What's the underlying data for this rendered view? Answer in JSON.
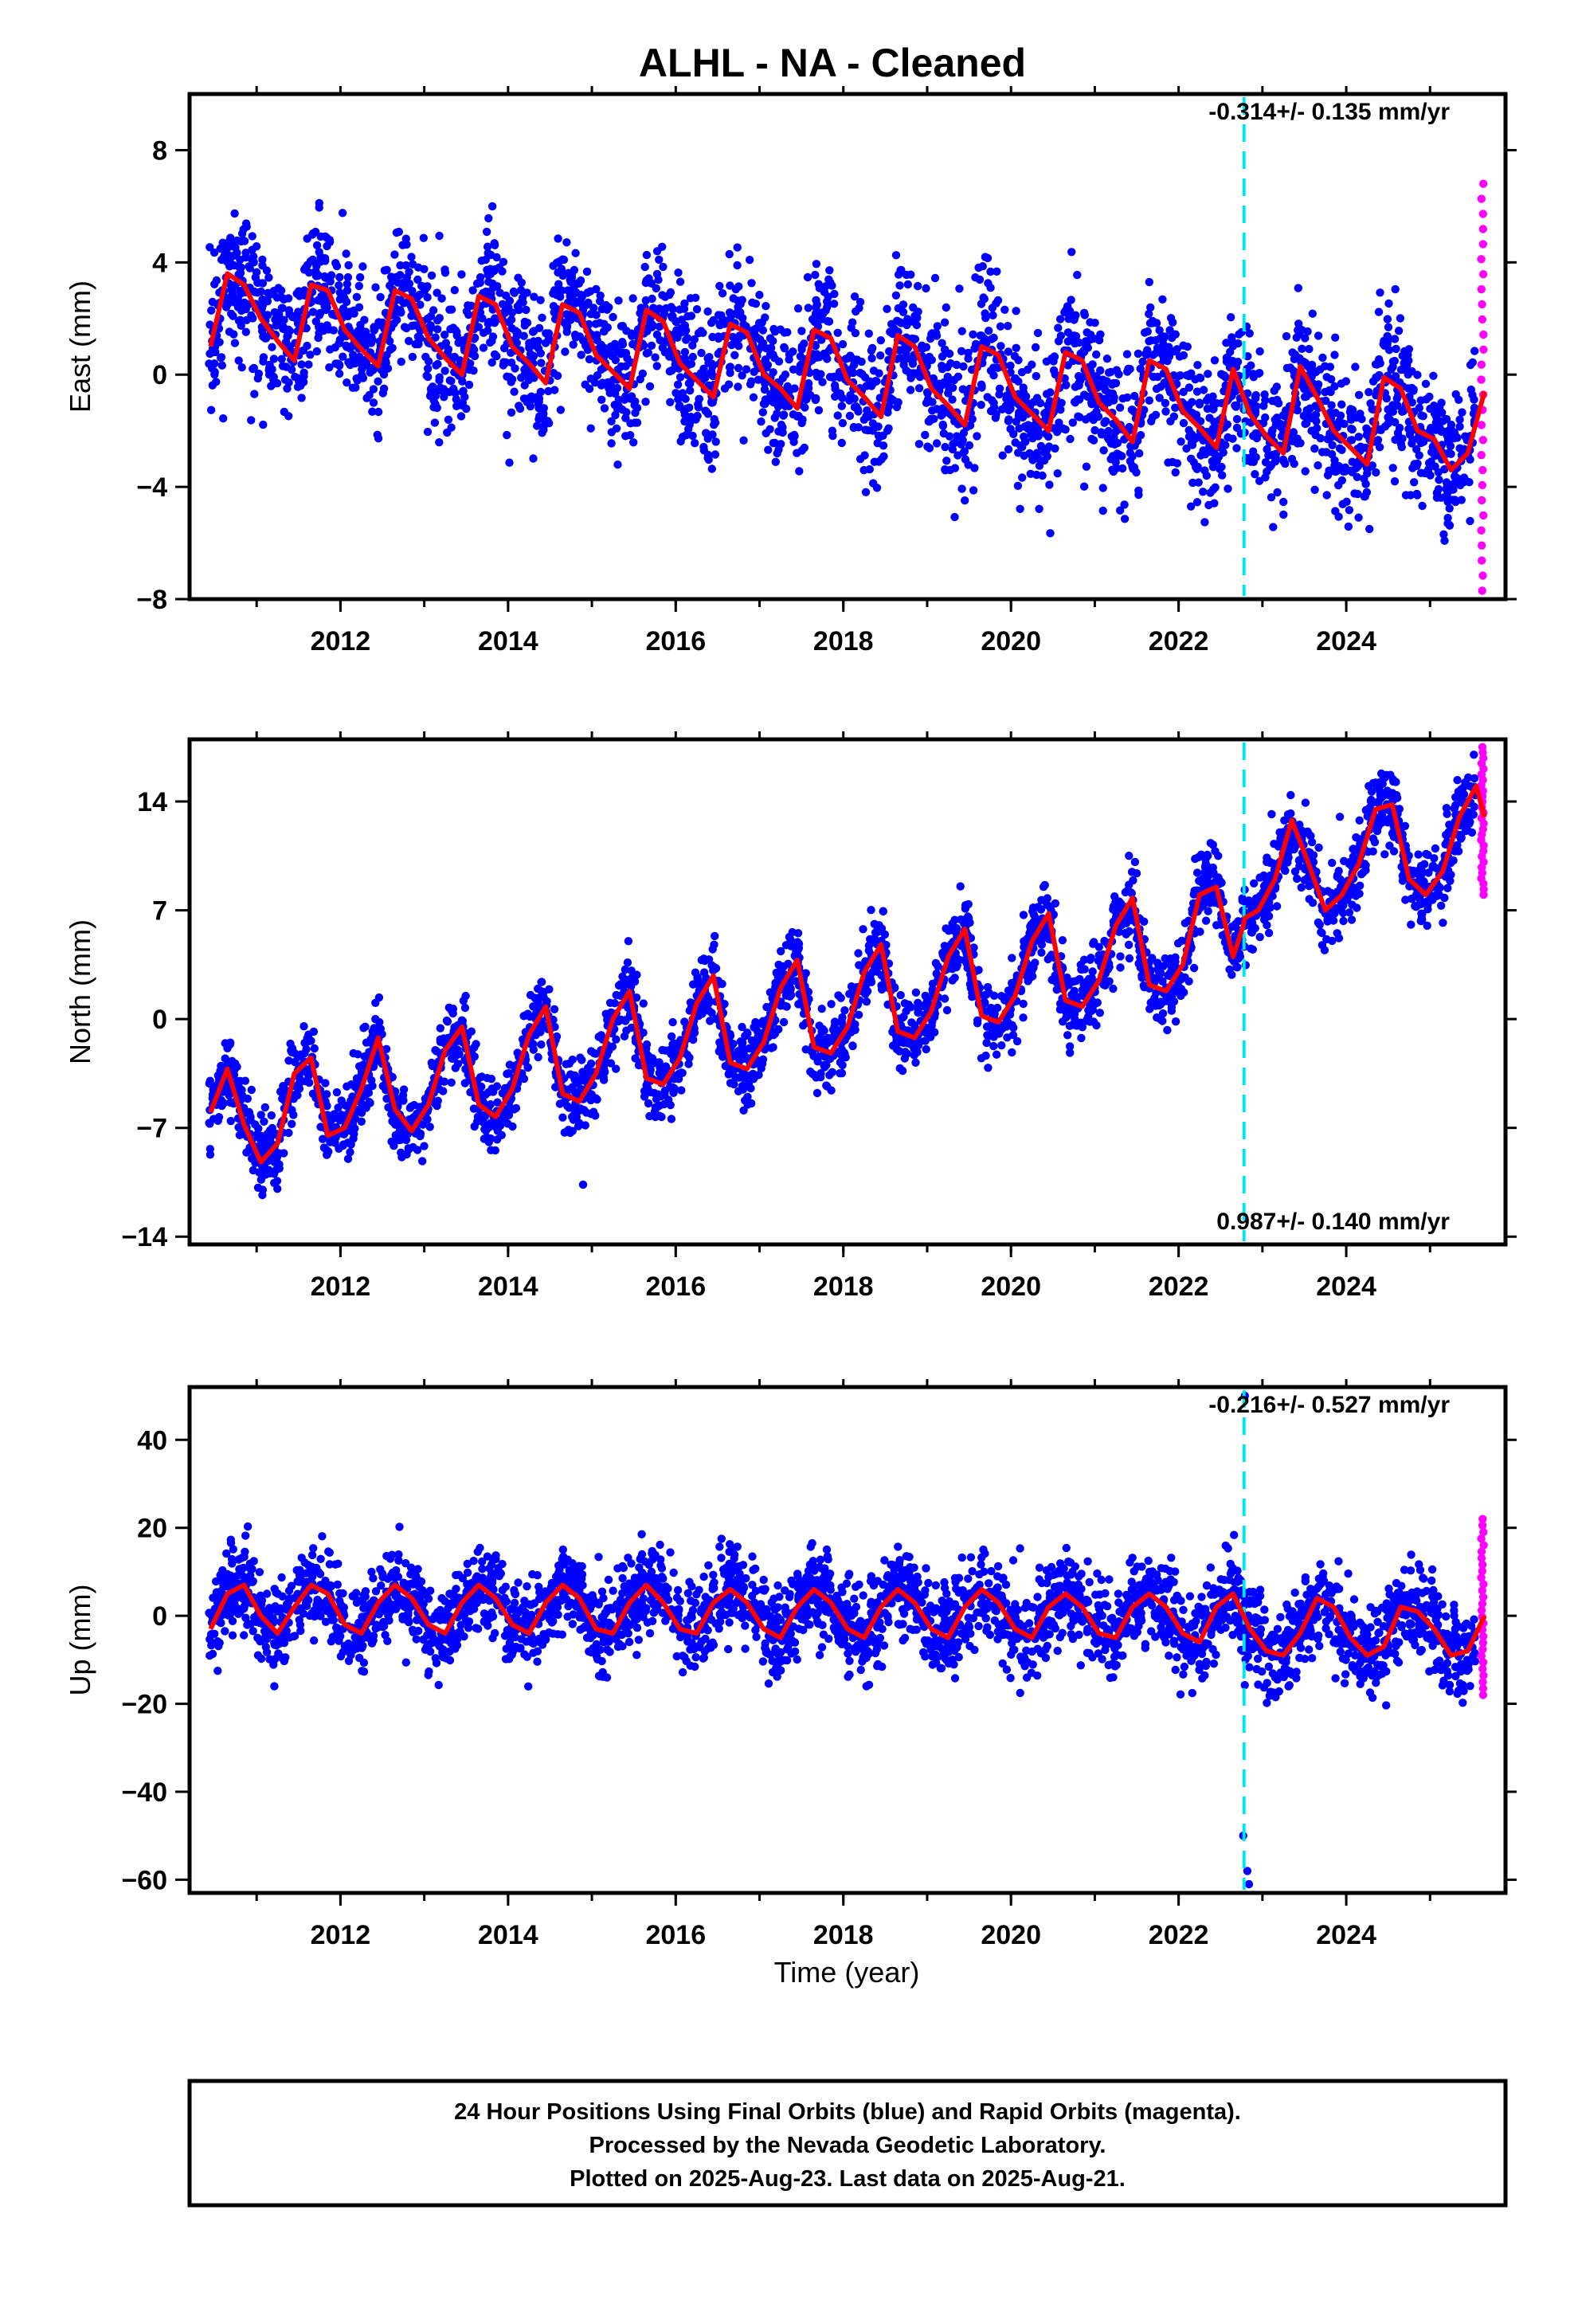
{
  "title": "ALHL  - NA - Cleaned",
  "xlabel": "Time (year)",
  "footer": {
    "line1": "24 Hour Positions Using Final Orbits (blue) and Rapid Orbits (magenta).",
    "line2": "Processed by the Nevada Geodetic Laboratory.",
    "line3": "Plotted on 2025-Aug-23. Last data on 2025-Aug-21."
  },
  "colors": {
    "final_orbits": "#0000ff",
    "rapid_orbits": "#ff00ff",
    "model_fit": "#ff0000",
    "equipment_change": "#00e5ee"
  },
  "chart_data": [
    {
      "type": "scatter",
      "component": "East",
      "ylabel": "East (mm)",
      "rate_label": "-0.314+/- 0.135 mm/yr",
      "xlim": [
        2010.2,
        2025.9
      ],
      "ylim": [
        -8,
        10
      ],
      "xticks": [
        2012,
        2014,
        2016,
        2018,
        2020,
        2022,
        2024
      ],
      "yticks": [
        -8,
        -4,
        0,
        4,
        8
      ],
      "data_start": 2010.43,
      "data_end": 2025.64,
      "offset_epoch": 2022.78,
      "series": [
        {
          "name": "Final Orbits",
          "color": "#0000ff",
          "scatter_sd_mm": 1.3
        },
        {
          "name": "Rapid Orbits",
          "color": "#ff00ff",
          "x_range": [
            2025.54,
            2025.64
          ],
          "y_range": [
            -7.7,
            6.8
          ]
        },
        {
          "name": "Model fit",
          "color": "#ff0000",
          "x": [
            2010.45,
            2010.65,
            2010.85,
            2011.05,
            2011.25,
            2011.45,
            2011.65,
            2011.85,
            2012.05,
            2012.25,
            2012.45,
            2012.65,
            2012.85,
            2013.05,
            2013.25,
            2013.45,
            2013.65,
            2013.85,
            2014.05,
            2014.25,
            2014.45,
            2014.65,
            2014.85,
            2015.05,
            2015.25,
            2015.45,
            2015.65,
            2015.85,
            2016.05,
            2016.25,
            2016.45,
            2016.65,
            2016.85,
            2017.05,
            2017.25,
            2017.45,
            2017.65,
            2017.85,
            2018.05,
            2018.25,
            2018.45,
            2018.65,
            2018.85,
            2019.05,
            2019.25,
            2019.45,
            2019.65,
            2019.85,
            2020.05,
            2020.25,
            2020.45,
            2020.65,
            2020.85,
            2021.05,
            2021.25,
            2021.45,
            2021.65,
            2021.85,
            2022.05,
            2022.25,
            2022.45,
            2022.65,
            2022.85,
            2023.05,
            2023.25,
            2023.45,
            2023.65,
            2023.85,
            2024.05,
            2024.25,
            2024.45,
            2024.65,
            2024.85,
            2025.05,
            2025.25,
            2025.45,
            2025.65
          ],
          "y": [
            1.0,
            3.6,
            3.2,
            2.0,
            1.2,
            0.5,
            3.2,
            3.0,
            1.6,
            0.9,
            0.3,
            3.0,
            2.7,
            1.3,
            0.6,
            0.0,
            2.8,
            2.5,
            1.0,
            0.4,
            -0.3,
            2.5,
            2.2,
            0.7,
            0.1,
            -0.5,
            2.3,
            1.9,
            0.4,
            -0.2,
            -0.8,
            1.8,
            1.5,
            0.0,
            -0.5,
            -1.2,
            1.6,
            1.3,
            -0.2,
            -0.8,
            -1.5,
            1.4,
            1.0,
            -0.5,
            -1.1,
            -1.8,
            1.0,
            0.7,
            -0.8,
            -1.4,
            -2.0,
            0.8,
            0.5,
            -1.0,
            -1.6,
            -2.4,
            0.5,
            0.2,
            -1.3,
            -1.9,
            -2.6,
            0.2,
            -1.4,
            -2.2,
            -2.8,
            0.3,
            -0.8,
            -2.0,
            -2.6,
            -3.2,
            -0.1,
            -0.5,
            -2.0,
            -2.3,
            -3.4,
            -2.8,
            -0.6
          ]
        }
      ]
    },
    {
      "type": "scatter",
      "component": "North",
      "ylabel": "North (mm)",
      "rate_label": "0.987+/- 0.140 mm/yr",
      "xlim": [
        2010.2,
        2025.9
      ],
      "ylim": [
        -14.5,
        18
      ],
      "xticks": [
        2012,
        2014,
        2016,
        2018,
        2020,
        2022,
        2024
      ],
      "yticks": [
        -14,
        -7,
        0,
        7,
        14
      ],
      "data_start": 2010.43,
      "data_end": 2025.64,
      "offset_epoch": 2022.78,
      "series": [
        {
          "name": "Final Orbits",
          "color": "#0000ff",
          "scatter_sd_mm": 1.2
        },
        {
          "name": "Rapid Orbits",
          "color": "#ff00ff",
          "x_range": [
            2025.54,
            2025.64
          ],
          "y_range": [
            8.0,
            17.5
          ]
        },
        {
          "name": "Model fit",
          "color": "#ff0000",
          "x": [
            2010.45,
            2010.65,
            2010.85,
            2011.05,
            2011.25,
            2011.45,
            2011.65,
            2011.85,
            2012.05,
            2012.25,
            2012.45,
            2012.65,
            2012.85,
            2013.05,
            2013.25,
            2013.45,
            2013.65,
            2013.85,
            2014.05,
            2014.25,
            2014.45,
            2014.65,
            2014.85,
            2015.05,
            2015.25,
            2015.45,
            2015.65,
            2015.85,
            2016.05,
            2016.25,
            2016.45,
            2016.65,
            2016.85,
            2017.05,
            2017.25,
            2017.45,
            2017.65,
            2017.85,
            2018.05,
            2018.25,
            2018.45,
            2018.65,
            2018.85,
            2019.05,
            2019.25,
            2019.45,
            2019.65,
            2019.85,
            2020.05,
            2020.25,
            2020.45,
            2020.65,
            2020.85,
            2021.05,
            2021.25,
            2021.45,
            2021.65,
            2021.85,
            2022.05,
            2022.25,
            2022.45,
            2022.65,
            2022.77,
            2022.79,
            2022.95,
            2023.15,
            2023.35,
            2023.55,
            2023.75,
            2023.95,
            2024.15,
            2024.35,
            2024.55,
            2024.75,
            2024.95,
            2025.15,
            2025.35,
            2025.55,
            2025.65
          ],
          "y": [
            -6.0,
            -3.2,
            -6.8,
            -9.2,
            -8.0,
            -3.5,
            -2.5,
            -7.5,
            -7.0,
            -4.5,
            -1.2,
            -5.8,
            -7.2,
            -5.5,
            -2.0,
            -0.5,
            -5.5,
            -6.3,
            -4.5,
            -1.0,
            0.8,
            -4.8,
            -5.3,
            -3.5,
            0.0,
            1.8,
            -3.8,
            -4.2,
            -2.5,
            1.0,
            2.8,
            -2.8,
            -3.2,
            -1.5,
            2.0,
            3.8,
            -1.8,
            -2.2,
            -0.5,
            3.0,
            4.8,
            -0.8,
            -1.2,
            0.5,
            4.0,
            5.8,
            0.2,
            -0.2,
            1.5,
            5.0,
            6.8,
            1.2,
            0.8,
            2.5,
            6.0,
            7.8,
            2.2,
            1.8,
            3.5,
            8.0,
            8.5,
            4.0,
            6.0,
            6.5,
            7.0,
            9.0,
            12.8,
            10.0,
            7.0,
            8.0,
            10.0,
            13.5,
            13.8,
            9.0,
            8.0,
            9.5,
            13.0,
            15.0,
            13.0
          ]
        }
      ]
    },
    {
      "type": "scatter",
      "component": "Up",
      "ylabel": "Up (mm)",
      "rate_label": "-0.216+/- 0.527 mm/yr",
      "xlim": [
        2010.2,
        2025.9
      ],
      "ylim": [
        -63,
        52
      ],
      "xticks": [
        2012,
        2014,
        2016,
        2018,
        2020,
        2022,
        2024
      ],
      "yticks": [
        -60,
        -40,
        -20,
        0,
        20,
        40
      ],
      "data_start": 2010.43,
      "data_end": 2025.64,
      "offset_epoch": 2022.78,
      "outliers": [
        [
          2022.79,
          50
        ],
        [
          2022.77,
          -50
        ],
        [
          2022.82,
          -58
        ],
        [
          2022.84,
          -61
        ]
      ],
      "series": [
        {
          "name": "Final Orbits",
          "color": "#0000ff",
          "scatter_sd_mm": 5.0
        },
        {
          "name": "Rapid Orbits",
          "color": "#ff00ff",
          "x_range": [
            2025.54,
            2025.64
          ],
          "y_range": [
            -18,
            22
          ]
        },
        {
          "name": "Model fit",
          "color": "#ff0000",
          "x": [
            2010.45,
            2010.65,
            2010.85,
            2011.05,
            2011.25,
            2011.45,
            2011.65,
            2011.85,
            2012.05,
            2012.25,
            2012.45,
            2012.65,
            2012.85,
            2013.05,
            2013.25,
            2013.45,
            2013.65,
            2013.85,
            2014.05,
            2014.25,
            2014.45,
            2014.65,
            2014.85,
            2015.05,
            2015.25,
            2015.45,
            2015.65,
            2015.85,
            2016.05,
            2016.25,
            2016.45,
            2016.65,
            2016.85,
            2017.05,
            2017.25,
            2017.45,
            2017.65,
            2017.85,
            2018.05,
            2018.25,
            2018.45,
            2018.65,
            2018.85,
            2019.05,
            2019.25,
            2019.45,
            2019.65,
            2019.85,
            2020.05,
            2020.25,
            2020.45,
            2020.65,
            2020.85,
            2021.05,
            2021.25,
            2021.45,
            2021.65,
            2021.85,
            2022.05,
            2022.25,
            2022.45,
            2022.65,
            2022.85,
            2023.05,
            2023.25,
            2023.45,
            2023.65,
            2023.85,
            2024.05,
            2024.25,
            2024.45,
            2024.65,
            2024.85,
            2025.05,
            2025.25,
            2025.45,
            2025.65
          ],
          "y": [
            -3,
            5,
            7,
            0,
            -4,
            2,
            7,
            5,
            -2,
            -4,
            3,
            7,
            4,
            -2,
            -4,
            3,
            7,
            4,
            -2,
            -4,
            3,
            7,
            4,
            -3,
            -4,
            3,
            7,
            3,
            -3,
            -4,
            3,
            6,
            3,
            -3,
            -5,
            2,
            6,
            3,
            -3,
            -5,
            2,
            6,
            3,
            -3,
            -5,
            2,
            6,
            3,
            -3,
            -5,
            2,
            5,
            2,
            -4,
            -5,
            2,
            5,
            2,
            -4,
            -6,
            2,
            5,
            -3,
            -8,
            -9,
            -4,
            4,
            2,
            -5,
            -9,
            -7,
            2,
            1,
            -3,
            -9,
            -8,
            0
          ]
        }
      ]
    }
  ]
}
